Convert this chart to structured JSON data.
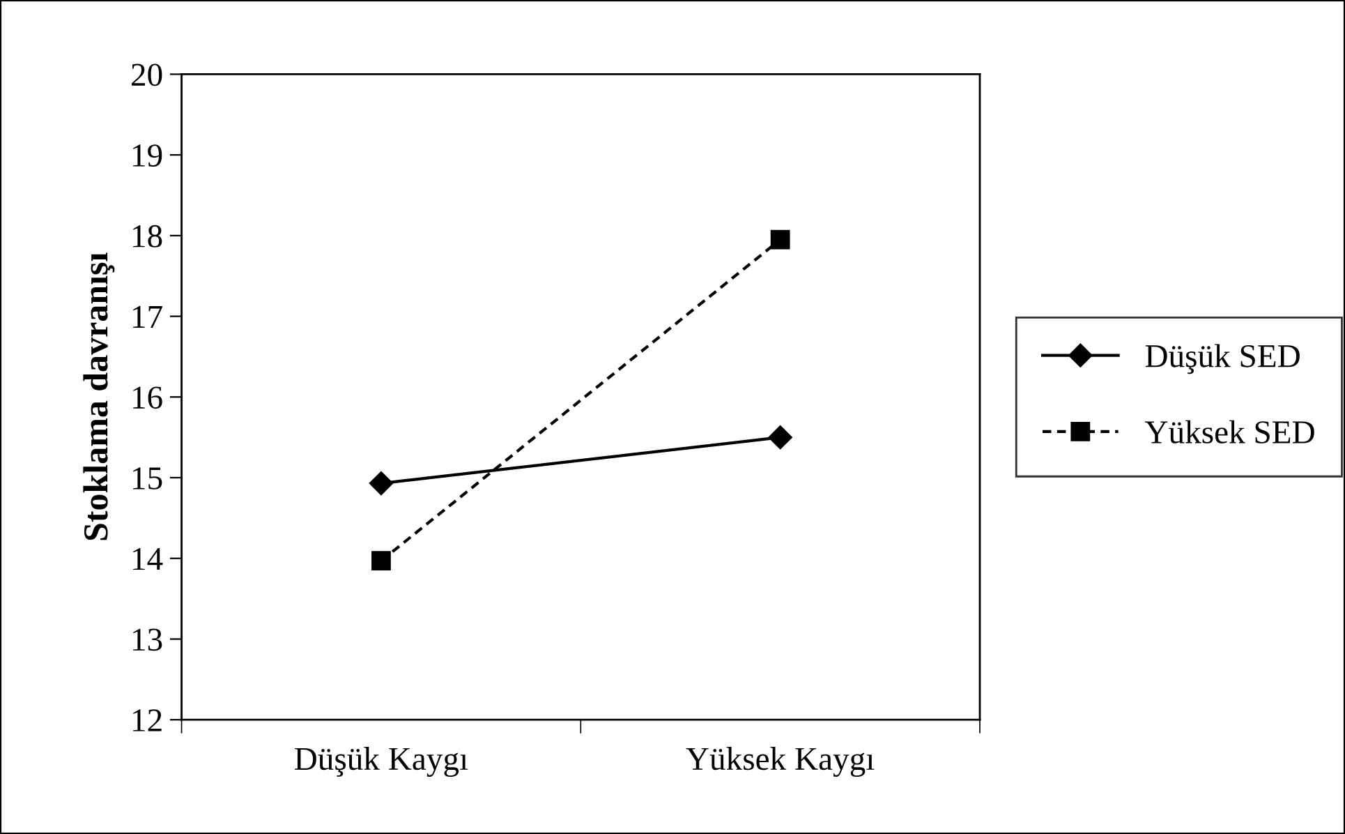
{
  "chart_data": {
    "type": "line",
    "ylabel": "Stoklama davranışı",
    "categories": [
      "Düşük Kaygı",
      "Yüksek Kaygı"
    ],
    "series": [
      {
        "name": "Düşük SED",
        "color": "#000000",
        "values": [
          14.93,
          15.5
        ],
        "marker": "diamond",
        "line_style": "solid"
      },
      {
        "name": "Yüksek SED",
        "color": "#000000",
        "values": [
          13.97,
          17.95
        ],
        "marker": "square",
        "line_style": "dashed"
      }
    ],
    "ylim": [
      12,
      20
    ],
    "yticks": [
      12,
      13,
      14,
      15,
      16,
      17,
      18,
      19,
      20
    ],
    "grid": false,
    "legend": "right"
  }
}
